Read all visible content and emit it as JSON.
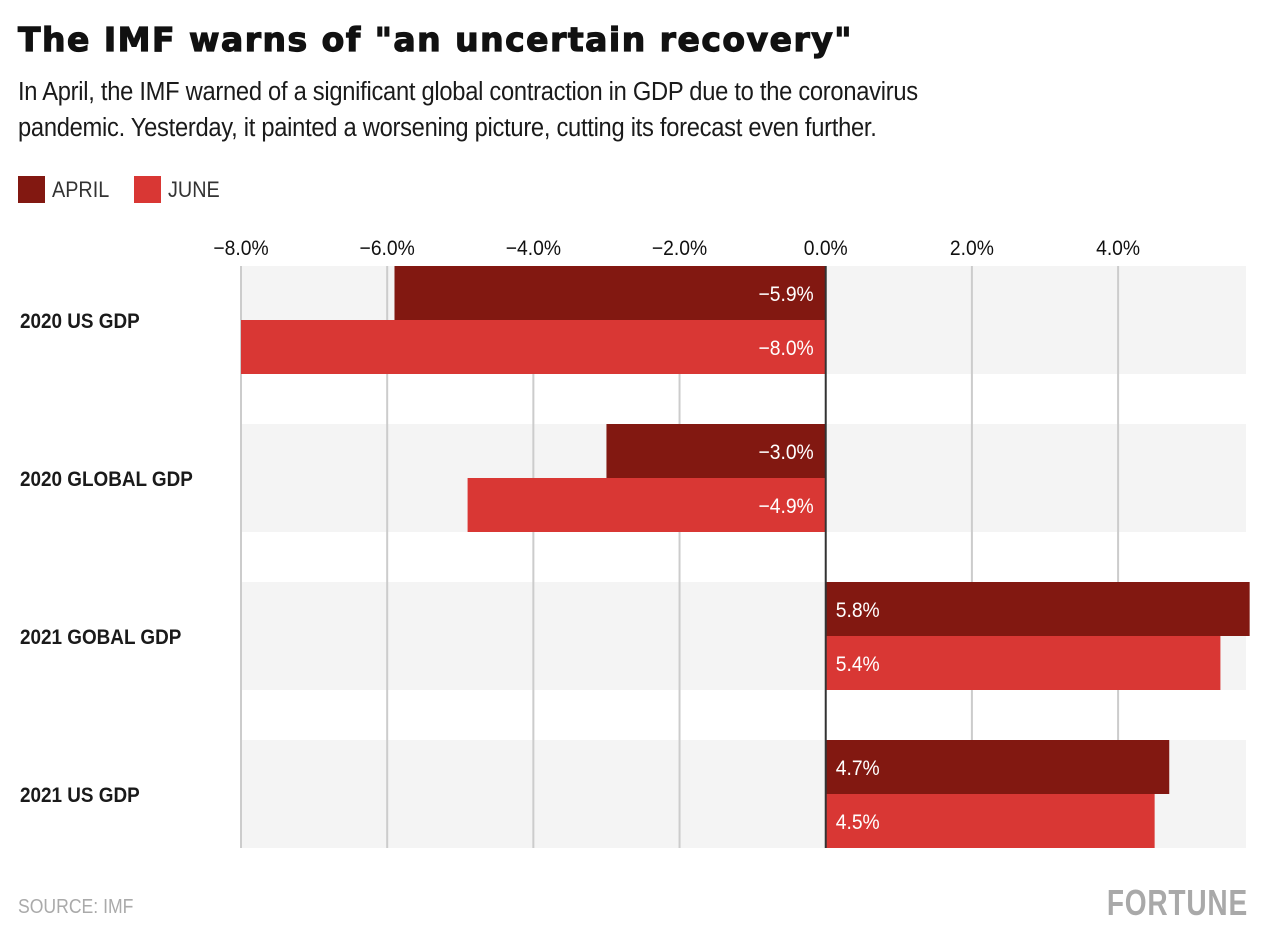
{
  "header": {
    "title": "The IMF warns of \"an uncertain recovery\"",
    "subtitle_line1": "In April, the IMF warned of a significant global contraction in GDP due to the coronavirus",
    "subtitle_line2": "pandemic. Yesterday, it painted a worsening picture, cutting its forecast even further."
  },
  "legend": [
    {
      "label": "APRIL",
      "color": "#821811"
    },
    {
      "label": "JUNE",
      "color": "#d93734"
    }
  ],
  "footer": {
    "source": "SOURCE: IMF",
    "brand": "FORTUNE"
  },
  "colors": {
    "april": "#821811",
    "june": "#d93734",
    "band": "#f4f4f4",
    "grid": "#cccccc",
    "zero_line": "#333333"
  },
  "chart_data": {
    "type": "bar",
    "orientation": "horizontal",
    "title": "The IMF warns of \"an uncertain recovery\"",
    "xlabel": "",
    "ylabel": "",
    "xlim": [
      -8.0,
      5.75
    ],
    "x_ticks": [
      -8.0,
      -6.0,
      -4.0,
      -2.0,
      0.0,
      2.0,
      4.0
    ],
    "x_tick_labels": [
      "−8.0%",
      "−6.0%",
      "−4.0%",
      "−2.0%",
      "0.0%",
      "2.0%",
      "4.0%"
    ],
    "grid": true,
    "legend_position": "top-left",
    "categories": [
      "2020 US GDP",
      "2020 GLOBAL GDP",
      "2021 GOBAL GDP",
      "2021 US GDP"
    ],
    "series": [
      {
        "name": "APRIL",
        "values": [
          -5.9,
          -3.0,
          5.8,
          4.7
        ],
        "labels": [
          "−5.9%",
          "−3.0%",
          "5.8%",
          "4.7%"
        ]
      },
      {
        "name": "JUNE",
        "values": [
          -8.0,
          -4.9,
          5.4,
          4.5
        ],
        "labels": [
          "−8.0%",
          "−4.9%",
          "5.4%",
          "4.5%"
        ]
      }
    ]
  }
}
